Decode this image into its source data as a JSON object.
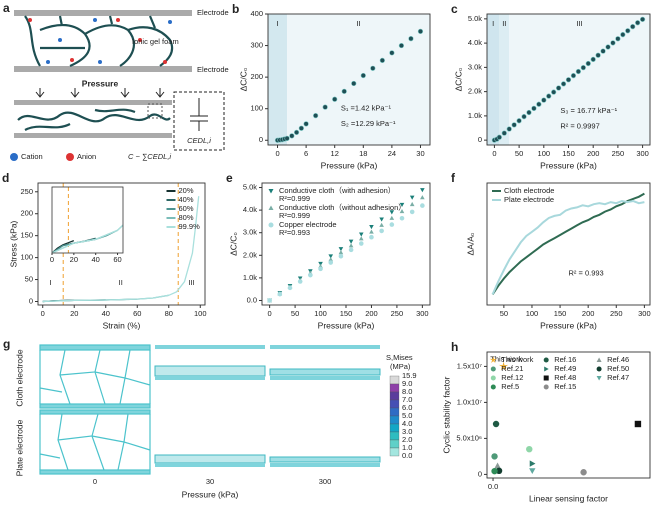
{
  "panel_a": {
    "label": "a",
    "electrode_top": "Electrode",
    "foam": "Ionic gel foam",
    "electrode_bottom": "Electrode",
    "pressure": "Pressure",
    "capacitor": "CEDL,i",
    "legend": [
      "Cation",
      "Anion",
      "C ~ ∑CEDL,i"
    ]
  },
  "panel_g": {
    "label": "g",
    "rows": [
      "Cloth electrode",
      "Plate electrode"
    ],
    "columns": [
      "0",
      "30",
      "300"
    ],
    "xlabel": "Pressure (kPa)",
    "colorbar_title": "S,Mises",
    "colorbar_unit": "(MPa)",
    "colorbar_ticks": [
      "15.9",
      "9.0",
      "8.0",
      "7.0",
      "6.0",
      "5.0",
      "4.0",
      "3.0",
      "2.0",
      "1.0",
      "0.0"
    ],
    "colorbar_colors": [
      "#d9d9d9",
      "#8e3fa8",
      "#5b3c9c",
      "#4550b4",
      "#2f6cc4",
      "#1e8bca",
      "#12a6c6",
      "#2ebcc0",
      "#5fd0c8",
      "#a3e6df"
    ]
  },
  "chart_data": [
    {
      "label": "b",
      "type": "scatter",
      "x": [
        0,
        0.5,
        1,
        1.5,
        2,
        3,
        4,
        5,
        6,
        8,
        10,
        12,
        14,
        16,
        18,
        20,
        22,
        24,
        26,
        28,
        30
      ],
      "values": [
        0,
        1,
        2,
        4,
        6,
        14,
        25,
        38,
        52,
        78,
        105,
        130,
        155,
        180,
        205,
        228,
        253,
        277,
        300,
        322,
        345
      ],
      "color": "#1f4f55",
      "edge": "#7cc9c6",
      "xlim": [
        -2,
        32
      ],
      "ylim": [
        -15,
        400
      ],
      "xticks": [
        0,
        6,
        12,
        18,
        24,
        30
      ],
      "yticks": [
        0,
        100,
        200,
        300,
        400
      ],
      "xlabel": "Pressure (kPa)",
      "ylabel": "ΔC/C₀",
      "region_bounds": [
        2
      ],
      "region_labels": [
        "I",
        "II"
      ],
      "region_colors": [
        "#d3e8ef",
        "#eef6f9"
      ],
      "annotations": [
        "S₁ =1.42 kPa⁻¹",
        "S₂ =12.29 kPa⁻¹"
      ]
    },
    {
      "label": "c",
      "type": "scatter",
      "x": [
        0,
        5,
        10,
        20,
        30,
        40,
        50,
        60,
        70,
        80,
        90,
        100,
        110,
        120,
        130,
        140,
        150,
        160,
        170,
        180,
        190,
        200,
        210,
        220,
        230,
        240,
        250,
        260,
        270,
        280,
        290,
        300
      ],
      "values": [
        0,
        40,
        120,
        290,
        460,
        630,
        800,
        970,
        1140,
        1310,
        1480,
        1650,
        1815,
        1980,
        2150,
        2320,
        2490,
        2660,
        2830,
        2990,
        3160,
        3330,
        3500,
        3670,
        3840,
        4010,
        4180,
        4350,
        4510,
        4680,
        4840,
        4980
      ],
      "color": "#1f4f55",
      "edge": "#7cc9c6",
      "xlim": [
        -15,
        315
      ],
      "ylim": [
        -200,
        5200
      ],
      "xticks": [
        0,
        50,
        100,
        150,
        200,
        250,
        300
      ],
      "yticks": [
        0,
        {
          "value": 1000,
          "label": "1.0k"
        },
        {
          "value": 2000,
          "label": "2.0k"
        },
        {
          "value": 3000,
          "label": "3.0k"
        },
        {
          "value": 4000,
          "label": "4.0k"
        },
        {
          "value": 5000,
          "label": "5.0k"
        }
      ],
      "xlabel": "Pressure (kPa)",
      "ylabel": "ΔC/C₀",
      "region_bounds": [
        10,
        30
      ],
      "region_labels": [
        "I",
        "II",
        "III"
      ],
      "region_colors": [
        "#cfe5ee",
        "#dcedf3",
        "#eef6f9"
      ],
      "annotations": [
        "S₃ = 16.77 kPa⁻¹",
        "R² = 0.9997"
      ]
    },
    {
      "label": "d",
      "type": "line",
      "xlim": [
        -3,
        103
      ],
      "ylim": [
        -8,
        270
      ],
      "xticks": [
        0,
        20,
        40,
        60,
        80,
        100
      ],
      "yticks": [
        0,
        50,
        100,
        150,
        200,
        250
      ],
      "xlabel": "Strain (%)",
      "ylabel": "Stress (kPa)",
      "region_bounds": [
        13,
        86
      ],
      "region_style": "dashed",
      "region_labels": [
        "I",
        "II",
        "III"
      ],
      "legend": "upper right",
      "series": [
        {
          "name": "20%",
          "color": "#16302f",
          "x": [
            0,
            5,
            10,
            15,
            20
          ],
          "values": [
            0,
            1.2,
            2.0,
            2.5,
            3.0
          ]
        },
        {
          "name": "40%",
          "color": "#2d6664",
          "x": [
            0,
            10,
            20,
            30,
            40
          ],
          "values": [
            0,
            1.8,
            2.4,
            2.9,
            3.6
          ]
        },
        {
          "name": "60%",
          "color": "#4c9491",
          "x": [
            0,
            10,
            20,
            30,
            40,
            50,
            60
          ],
          "values": [
            0,
            1.8,
            2.4,
            2.8,
            3.3,
            4.2,
            5.5
          ]
        },
        {
          "name": "80%",
          "color": "#7bbdb9",
          "x": [
            0,
            20,
            40,
            60,
            70,
            80
          ],
          "values": [
            0,
            2.4,
            3.3,
            5.5,
            8,
            14
          ]
        },
        {
          "name": "99.9%",
          "color": "#a9e0dd",
          "x": [
            0,
            20,
            40,
            60,
            70,
            80,
            85,
            90,
            95,
            97,
            99
          ],
          "values": [
            0,
            2.4,
            3.3,
            5.5,
            8,
            14,
            22,
            45,
            110,
            170,
            240
          ]
        }
      ],
      "inset": {
        "xlim": [
          0,
          65
        ],
        "ylim": [
          0,
          16
        ],
        "xticks": [
          0,
          20,
          40,
          60
        ],
        "region_bounds": [
          15
        ]
      }
    },
    {
      "label": "e",
      "type": "scatter",
      "x": [
        0,
        20,
        40,
        60,
        80,
        100,
        120,
        140,
        160,
        180,
        200,
        220,
        240,
        260,
        280,
        300
      ],
      "xlim": [
        -15,
        315
      ],
      "ylim": [
        -200,
        5200
      ],
      "xticks": [
        0,
        50,
        100,
        150,
        200,
        250,
        300
      ],
      "yticks": [
        {
          "value": 0,
          "label": "0.0"
        },
        {
          "value": 1000,
          "label": "1.0k"
        },
        {
          "value": 2000,
          "label": "2.0k"
        },
        {
          "value": 3000,
          "label": "3.0k"
        },
        {
          "value": 4000,
          "label": "4.0k"
        },
        {
          "value": 5000,
          "label": "5.0k"
        }
      ],
      "xlabel": "Pressure (kPa)",
      "ylabel": "ΔC/C₀",
      "legend": "upper left",
      "series": [
        {
          "name": "Conductive cloth（with adhesion）",
          "note": "R²=0.999",
          "color": "#1b7f79",
          "marker": "triangle-down",
          "values": [
            0,
            330,
            650,
            980,
            1300,
            1630,
            1960,
            2280,
            2610,
            2930,
            3260,
            3590,
            3910,
            4240,
            4560,
            4890
          ]
        },
        {
          "name": "Conductive cloth（without adhesion）",
          "note": "R²=0.999",
          "color": "#7aaea6",
          "marker": "triangle-up",
          "values": [
            0,
            300,
            610,
            910,
            1220,
            1520,
            1820,
            2130,
            2430,
            2740,
            3040,
            3340,
            3650,
            3950,
            4260,
            4560
          ]
        },
        {
          "name": "Copper electrode",
          "note": "R²=0.993",
          "color": "#a9dde0",
          "marker": "circle",
          "values": [
            0,
            280,
            560,
            840,
            1120,
            1400,
            1680,
            1960,
            2240,
            2520,
            2800,
            3080,
            3360,
            3640,
            3920,
            4200
          ]
        }
      ]
    },
    {
      "label": "f",
      "type": "line",
      "x": [
        30,
        40,
        50,
        60,
        70,
        80,
        90,
        100,
        110,
        120,
        130,
        140,
        150,
        160,
        170,
        180,
        190,
        200,
        210,
        220,
        230,
        240,
        250,
        260,
        270,
        280,
        290,
        300
      ],
      "xlim": [
        20,
        310
      ],
      "ylim": [
        -1,
        10.5
      ],
      "xticks": [
        50,
        100,
        150,
        200,
        250,
        300
      ],
      "xlabel": "Pressure (kPa)",
      "ylabel": "ΔA/A₀",
      "legend": "upper left",
      "annotations": [
        "R² = 0.993"
      ],
      "series": [
        {
          "name": "Cloth electrode",
          "color": "#2f6b52",
          "values": [
            0,
            0.8,
            1.5,
            2.1,
            2.6,
            3.1,
            3.5,
            3.9,
            4.3,
            4.7,
            5.0,
            5.3,
            5.6,
            5.9,
            6.2,
            6.5,
            6.8,
            7.0,
            7.3,
            7.5,
            7.8,
            8.0,
            8.3,
            8.5,
            8.8,
            9.0,
            9.2,
            9.5
          ]
        },
        {
          "name": "Plate electrode",
          "color": "#a8d8dc",
          "values": [
            0,
            1.2,
            2.3,
            3.3,
            4.1,
            4.9,
            5.5,
            5.9,
            6.3,
            6.8,
            7.2,
            7.4,
            7.5,
            7.9,
            8.1,
            8.2,
            8.4,
            8.3,
            8.5,
            8.6,
            8.5,
            8.7,
            8.6,
            8.8,
            8.7,
            8.8,
            8.6,
            8.7
          ]
        }
      ]
    },
    {
      "label": "h",
      "type": "scatter",
      "xlim": [
        -2000,
        52000
      ],
      "ylim": [
        -500000,
        17000000
      ],
      "xticks": [
        {
          "value": 0,
          "label": "0.0"
        }
      ],
      "yticks": [
        0,
        {
          "value": 5000000,
          "label": "5.0x10⁶"
        },
        {
          "value": 10000000,
          "label": "1.0x10⁷"
        },
        {
          "value": 15000000,
          "label": "1.5x10⁷"
        }
      ],
      "xlabel": "Linear sensing factor",
      "ylabel": "Cyclic stability factor",
      "legend": "upper right",
      "legend_columns": 3,
      "annotations": [
        "This work"
      ],
      "series": [
        {
          "name": "This work",
          "color": "#f2b134",
          "marker": "star",
          "x": [
            3500
          ],
          "values": [
            15000000
          ]
        },
        {
          "name": "Ref.16",
          "color": "#1f5a44",
          "marker": "circle",
          "x": [
            1000
          ],
          "values": [
            7000000
          ]
        },
        {
          "name": "Ref.46",
          "color": "#8a9a96",
          "marker": "triangle-up",
          "x": [
            1500
          ],
          "values": [
            1200000
          ]
        },
        {
          "name": "Ref.21",
          "color": "#4f9a78",
          "marker": "circle",
          "x": [
            500
          ],
          "values": [
            2500000
          ]
        },
        {
          "name": "Ref.49",
          "color": "#2c7a6a",
          "marker": "triangle-right",
          "x": [
            13000
          ],
          "values": [
            1500000
          ]
        },
        {
          "name": "Ref.50",
          "color": "#123d2f",
          "marker": "circle",
          "x": [
            2000
          ],
          "values": [
            500000
          ]
        },
        {
          "name": "Ref.12",
          "color": "#8fd6a8",
          "marker": "circle",
          "x": [
            12000
          ],
          "values": [
            3500000
          ]
        },
        {
          "name": "Ref.48",
          "color": "#111111",
          "marker": "square",
          "x": [
            48000
          ],
          "values": [
            7000000
          ]
        },
        {
          "name": "Ref.47",
          "color": "#5fa9a0",
          "marker": "triangle-down",
          "x": [
            13000
          ],
          "values": [
            500000
          ]
        },
        {
          "name": "Ref.5",
          "color": "#2e8b57",
          "marker": "circle",
          "x": [
            500
          ],
          "values": [
            450000
          ]
        },
        {
          "name": "Ref.15",
          "color": "#8c8c8c",
          "marker": "circle",
          "x": [
            30000
          ],
          "values": [
            300000
          ]
        }
      ]
    }
  ]
}
